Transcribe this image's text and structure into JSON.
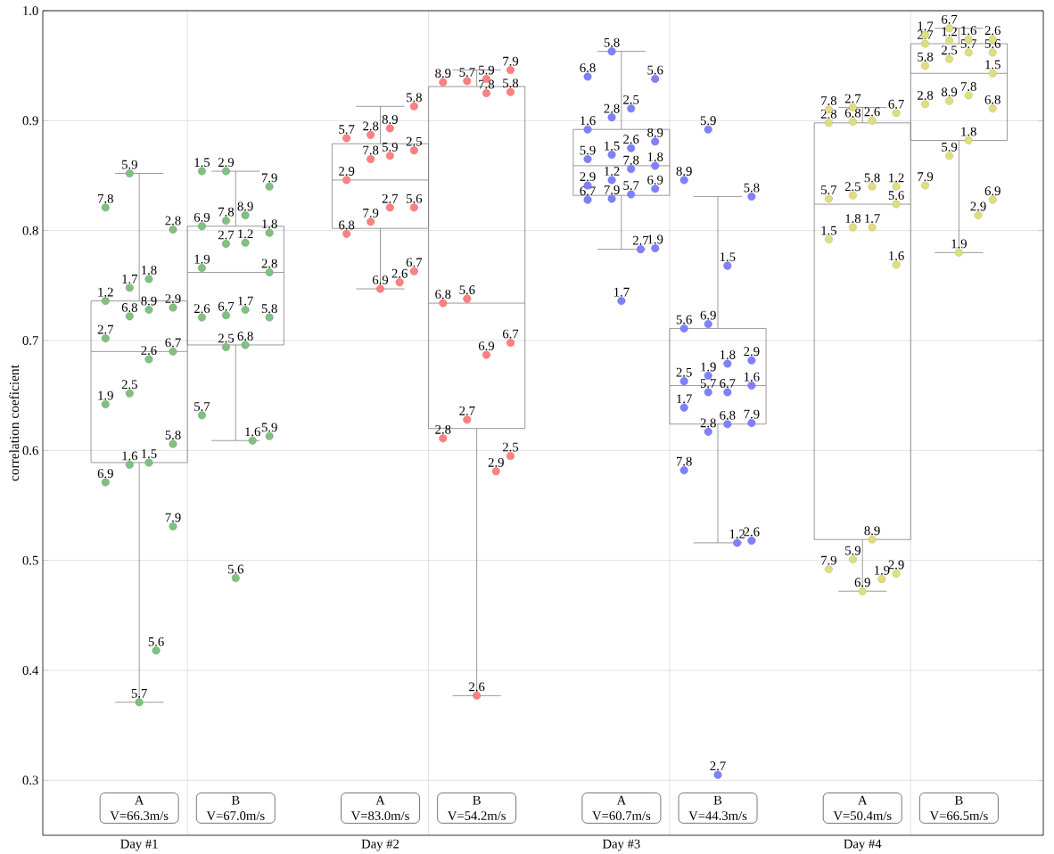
{
  "chart_data": {
    "type": "box",
    "ylabel": "correlation coeficient",
    "xlim": [
      0.6,
      4.75
    ],
    "ylim": [
      0.25,
      1.0
    ],
    "yticks": [
      0.3,
      0.4,
      0.5,
      0.6,
      0.7,
      0.8,
      0.9,
      {
        "value": 1.0,
        "label": "1.0"
      }
    ],
    "xticks": [
      {
        "value": 1,
        "label": "Day #1"
      },
      {
        "value": 1.2,
        "label": null
      },
      {
        "value": 2,
        "label": "Day #2"
      },
      {
        "value": 2.2,
        "label": null
      },
      {
        "value": 3,
        "label": "Day #3"
      },
      {
        "value": 3.2,
        "label": null
      },
      {
        "value": 4,
        "label": "Day #4"
      },
      {
        "value": 4.2,
        "label": null
      }
    ],
    "grid": true,
    "marker": "circle",
    "annotations": [
      "A",
      "V=66.3m/s",
      "B",
      "V=67.0m/s",
      "A",
      "V=83.0m/s",
      "B",
      "V=54.2m/s",
      "A",
      "V=60.7m/s",
      "B",
      "V=44.3m/s",
      "A",
      "V=50.4m/s",
      "B",
      "V=66.5m/s",
      {
        "text": "5.9",
        "x": 0.96,
        "y": 0.852
      },
      {
        "text": "7.8",
        "x": 0.86,
        "y": 0.821
      },
      {
        "text": "2.8",
        "x": 1.14,
        "y": 0.801
      },
      {
        "text": "1.7",
        "x": 0.96,
        "y": 0.748
      },
      {
        "text": "1.8",
        "x": 1.04,
        "y": 0.756
      },
      {
        "text": "1.2",
        "x": 0.86,
        "y": 0.736
      },
      {
        "text": "6.8",
        "x": 0.96,
        "y": 0.722
      },
      {
        "text": "8.9",
        "x": 1.04,
        "y": 0.728
      },
      {
        "text": "2.9",
        "x": 1.14,
        "y": 0.73
      },
      {
        "text": "2.7",
        "x": 0.86,
        "y": 0.702
      },
      {
        "text": "2.6",
        "x": 1.04,
        "y": 0.683
      },
      {
        "text": "6.7",
        "x": 1.14,
        "y": 0.69
      },
      {
        "text": "1.9",
        "x": 0.86,
        "y": 0.642
      },
      {
        "text": "2.5",
        "x": 0.96,
        "y": 0.652
      },
      {
        "text": "5.8",
        "x": 1.14,
        "y": 0.606
      },
      {
        "text": "1.6",
        "x": 0.96,
        "y": 0.587
      },
      {
        "text": "1.5",
        "x": 1.04,
        "y": 0.589
      },
      {
        "text": "6.9",
        "x": 0.86,
        "y": 0.571
      },
      {
        "text": "7.9",
        "x": 1.14,
        "y": 0.531
      },
      {
        "text": "5.6",
        "x": 1.07,
        "y": 0.418
      },
      {
        "text": "5.7",
        "x": 1.0,
        "y": 0.371
      },
      {
        "text": "1.5",
        "x": 1.26,
        "y": 0.854
      },
      {
        "text": "2.9",
        "x": 1.36,
        "y": 0.854
      },
      {
        "text": "7.9",
        "x": 1.54,
        "y": 0.84
      },
      {
        "text": "6.9",
        "x": 1.26,
        "y": 0.804
      },
      {
        "text": "7.8",
        "x": 1.36,
        "y": 0.809
      },
      {
        "text": "8.9",
        "x": 1.44,
        "y": 0.814
      },
      {
        "text": "1.8",
        "x": 1.54,
        "y": 0.798
      },
      {
        "text": "2.7",
        "x": 1.36,
        "y": 0.788
      },
      {
        "text": "1.2",
        "x": 1.44,
        "y": 0.789
      },
      {
        "text": "1.9",
        "x": 1.26,
        "y": 0.766
      },
      {
        "text": "2.8",
        "x": 1.54,
        "y": 0.762
      },
      {
        "text": "2.6",
        "x": 1.26,
        "y": 0.721
      },
      {
        "text": "6.7",
        "x": 1.36,
        "y": 0.723
      },
      {
        "text": "1.7",
        "x": 1.44,
        "y": 0.728
      },
      {
        "text": "5.8",
        "x": 1.54,
        "y": 0.721
      },
      {
        "text": "2.5",
        "x": 1.36,
        "y": 0.694
      },
      {
        "text": "6.8",
        "x": 1.44,
        "y": 0.696
      },
      {
        "text": "5.7",
        "x": 1.26,
        "y": 0.632
      },
      {
        "text": "1.6",
        "x": 1.47,
        "y": 0.609
      },
      {
        "text": "5.9",
        "x": 1.54,
        "y": 0.613
      },
      {
        "text": "5.6",
        "x": 1.4,
        "y": 0.484
      },
      {
        "text": "5.8",
        "x": 2.14,
        "y": 0.913
      },
      {
        "text": "5.7",
        "x": 1.86,
        "y": 0.884
      },
      {
        "text": "2.8",
        "x": 1.96,
        "y": 0.887
      },
      {
        "text": "8.9",
        "x": 2.04,
        "y": 0.893
      },
      {
        "text": "7.8",
        "x": 1.96,
        "y": 0.865
      },
      {
        "text": "5.9",
        "x": 2.04,
        "y": 0.868
      },
      {
        "text": "2.5",
        "x": 2.14,
        "y": 0.873
      },
      {
        "text": "2.9",
        "x": 1.86,
        "y": 0.846
      },
      {
        "text": "2.7",
        "x": 2.04,
        "y": 0.821
      },
      {
        "text": "5.6",
        "x": 2.14,
        "y": 0.821
      },
      {
        "text": "7.9",
        "x": 1.96,
        "y": 0.808
      },
      {
        "text": "6.8",
        "x": 1.86,
        "y": 0.797
      },
      {
        "text": "6.7",
        "x": 2.14,
        "y": 0.763
      },
      {
        "text": "2.6",
        "x": 2.08,
        "y": 0.753
      },
      {
        "text": "6.9",
        "x": 2.0,
        "y": 0.747
      },
      {
        "text": "8.9",
        "x": 2.26,
        "y": 0.935
      },
      {
        "text": "5.7",
        "x": 2.36,
        "y": 0.936
      },
      {
        "text": "5.9",
        "x": 2.44,
        "y": 0.938
      },
      {
        "text": "7.9",
        "x": 2.54,
        "y": 0.946
      },
      {
        "text": "7.8",
        "x": 2.44,
        "y": 0.925
      },
      {
        "text": "5.8",
        "x": 2.54,
        "y": 0.926
      },
      {
        "text": "6.8",
        "x": 2.26,
        "y": 0.734
      },
      {
        "text": "5.6",
        "x": 2.36,
        "y": 0.738
      },
      {
        "text": "6.7",
        "x": 2.54,
        "y": 0.698
      },
      {
        "text": "6.9",
        "x": 2.44,
        "y": 0.687
      },
      {
        "text": "2.7",
        "x": 2.36,
        "y": 0.628
      },
      {
        "text": "2.8",
        "x": 2.26,
        "y": 0.611
      },
      {
        "text": "2.5",
        "x": 2.54,
        "y": 0.595
      },
      {
        "text": "2.9",
        "x": 2.48,
        "y": 0.581
      },
      {
        "text": "2.6",
        "x": 2.4,
        "y": 0.377
      },
      {
        "text": "5.8",
        "x": 2.96,
        "y": 0.963
      },
      {
        "text": "6.8",
        "x": 2.86,
        "y": 0.94
      },
      {
        "text": "5.6",
        "x": 3.14,
        "y": 0.938
      },
      {
        "text": "2.8",
        "x": 2.96,
        "y": 0.903
      },
      {
        "text": "2.5",
        "x": 3.04,
        "y": 0.911
      },
      {
        "text": "1.6",
        "x": 2.86,
        "y": 0.892
      },
      {
        "text": "8.9",
        "x": 3.14,
        "y": 0.881
      },
      {
        "text": "5.9",
        "x": 2.86,
        "y": 0.865
      },
      {
        "text": "1.5",
        "x": 2.96,
        "y": 0.869
      },
      {
        "text": "2.6",
        "x": 3.04,
        "y": 0.875
      },
      {
        "text": "7.8",
        "x": 3.04,
        "y": 0.856
      },
      {
        "text": "1.8",
        "x": 3.14,
        "y": 0.859
      },
      {
        "text": "2.9",
        "x": 2.86,
        "y": 0.841
      },
      {
        "text": "1.2",
        "x": 2.96,
        "y": 0.846
      },
      {
        "text": "6.9",
        "x": 3.14,
        "y": 0.838
      },
      {
        "text": "6.7",
        "x": 2.86,
        "y": 0.828
      },
      {
        "text": "7.9",
        "x": 2.96,
        "y": 0.829
      },
      {
        "text": "5.7",
        "x": 3.04,
        "y": 0.833
      },
      {
        "text": "2.7",
        "x": 3.08,
        "y": 0.783
      },
      {
        "text": "1.9",
        "x": 3.14,
        "y": 0.784
      },
      {
        "text": "1.7",
        "x": 3.0,
        "y": 0.736
      },
      {
        "text": "5.9",
        "x": 3.36,
        "y": 0.892
      },
      {
        "text": "8.9",
        "x": 3.26,
        "y": 0.846
      },
      {
        "text": "5.8",
        "x": 3.54,
        "y": 0.831
      },
      {
        "text": "1.5",
        "x": 3.44,
        "y": 0.768
      },
      {
        "text": "5.6",
        "x": 3.26,
        "y": 0.711
      },
      {
        "text": "6.9",
        "x": 3.36,
        "y": 0.715
      },
      {
        "text": "1.8",
        "x": 3.44,
        "y": 0.679
      },
      {
        "text": "2.9",
        "x": 3.54,
        "y": 0.682
      },
      {
        "text": "2.5",
        "x": 3.26,
        "y": 0.663
      },
      {
        "text": "1.9",
        "x": 3.36,
        "y": 0.668
      },
      {
        "text": "5.7",
        "x": 3.36,
        "y": 0.653
      },
      {
        "text": "6.7",
        "x": 3.44,
        "y": 0.653
      },
      {
        "text": "1.6",
        "x": 3.54,
        "y": 0.659
      },
      {
        "text": "1.7",
        "x": 3.26,
        "y": 0.639
      },
      {
        "text": "2.8",
        "x": 3.36,
        "y": 0.617
      },
      {
        "text": "6.8",
        "x": 3.44,
        "y": 0.624
      },
      {
        "text": "7.9",
        "x": 3.54,
        "y": 0.625
      },
      {
        "text": "7.8",
        "x": 3.26,
        "y": 0.582
      },
      {
        "text": "1.2",
        "x": 3.48,
        "y": 0.516
      },
      {
        "text": "2.6",
        "x": 3.54,
        "y": 0.518
      },
      {
        "text": "2.7",
        "x": 3.4,
        "y": 0.305
      },
      {
        "text": "7.8",
        "x": 3.86,
        "y": 0.91
      },
      {
        "text": "2.7",
        "x": 3.96,
        "y": 0.912
      },
      {
        "text": "6.7",
        "x": 4.14,
        "y": 0.907
      },
      {
        "text": "2.8",
        "x": 3.86,
        "y": 0.898
      },
      {
        "text": "6.8",
        "x": 3.96,
        "y": 0.899
      },
      {
        "text": "2.6",
        "x": 4.04,
        "y": 0.9
      },
      {
        "text": "5.7",
        "x": 3.86,
        "y": 0.829
      },
      {
        "text": "2.5",
        "x": 3.96,
        "y": 0.832
      },
      {
        "text": "5.8",
        "x": 4.04,
        "y": 0.84
      },
      {
        "text": "1.2",
        "x": 4.14,
        "y": 0.84
      },
      {
        "text": "5.6",
        "x": 4.14,
        "y": 0.824
      },
      {
        "text": "1.5",
        "x": 3.86,
        "y": 0.792
      },
      {
        "text": "1.8",
        "x": 3.96,
        "y": 0.803
      },
      {
        "text": "1.7",
        "x": 4.04,
        "y": 0.803
      },
      {
        "text": "1.6",
        "x": 4.14,
        "y": 0.769
      },
      {
        "text": "8.9",
        "x": 4.04,
        "y": 0.519
      },
      {
        "text": "5.9",
        "x": 3.96,
        "y": 0.501
      },
      {
        "text": "7.9",
        "x": 3.86,
        "y": 0.492
      },
      {
        "text": "2.9",
        "x": 4.14,
        "y": 0.488
      },
      {
        "text": "1.9",
        "x": 4.08,
        "y": 0.483
      },
      {
        "text": "6.9",
        "x": 4.0,
        "y": 0.472
      },
      {
        "text": "1.7",
        "x": 4.26,
        "y": 0.978
      },
      {
        "text": "6.7",
        "x": 4.36,
        "y": 0.984
      },
      {
        "text": "1.6",
        "x": 4.44,
        "y": 0.974
      },
      {
        "text": "2.6",
        "x": 4.54,
        "y": 0.974
      },
      {
        "text": "2.7",
        "x": 4.26,
        "y": 0.97
      },
      {
        "text": "1.2",
        "x": 4.36,
        "y": 0.973
      },
      {
        "text": "5.7",
        "x": 4.44,
        "y": 0.962
      },
      {
        "text": "5.6",
        "x": 4.54,
        "y": 0.962
      },
      {
        "text": "5.8",
        "x": 4.26,
        "y": 0.95
      },
      {
        "text": "2.5",
        "x": 4.36,
        "y": 0.956
      },
      {
        "text": "1.5",
        "x": 4.54,
        "y": 0.943
      },
      {
        "text": "2.8",
        "x": 4.26,
        "y": 0.915
      },
      {
        "text": "8.9",
        "x": 4.36,
        "y": 0.918
      },
      {
        "text": "7.8",
        "x": 4.44,
        "y": 0.923
      },
      {
        "text": "6.8",
        "x": 4.54,
        "y": 0.911
      },
      {
        "text": "1.8",
        "x": 4.44,
        "y": 0.882
      },
      {
        "text": "5.9",
        "x": 4.36,
        "y": 0.868
      },
      {
        "text": "7.9",
        "x": 4.26,
        "y": 0.841
      },
      {
        "text": "6.9",
        "x": 4.54,
        "y": 0.828
      },
      {
        "text": "2.9",
        "x": 4.48,
        "y": 0.814
      },
      {
        "text": "1.9",
        "x": 4.4,
        "y": 0.78
      }
    ],
    "series": [
      {
        "color": "#808080",
        "x": [
          1,
          1.4
        ],
        "boxes": [
          {
            "low": 0.371,
            "q1": 0.589,
            "median": 0.69,
            "q3": 0.736,
            "high": 0.852
          },
          {
            "low": 0.609,
            "q1": 0.696,
            "median": 0.762,
            "q3": 0.804,
            "high": 0.854
          }
        ]
      },
      {
        "color": "#808080",
        "x": [
          2,
          2.4
        ],
        "boxes": [
          {
            "low": 0.747,
            "q1": 0.802,
            "median": 0.846,
            "q3": 0.879,
            "high": 0.913
          },
          {
            "low": 0.377,
            "q1": 0.62,
            "median": 0.734,
            "q3": 0.931,
            "high": 0.946
          }
        ]
      },
      {
        "color": "#808080",
        "x": [
          3,
          3.4
        ],
        "boxes": [
          {
            "low": 0.783,
            "q1": 0.832,
            "median": 0.859,
            "q3": 0.892,
            "high": 0.963
          },
          {
            "low": 0.516,
            "q1": 0.624,
            "median": 0.659,
            "q3": 0.711,
            "high": 0.831
          }
        ]
      },
      {
        "color": "#808080",
        "x": [
          4,
          4.4
        ],
        "boxes": [
          {
            "low": 0.472,
            "q1": 0.519,
            "median": 0.824,
            "q3": 0.898,
            "high": 0.912
          },
          {
            "low": 0.78,
            "q1": 0.882,
            "median": 0.943,
            "q3": 0.97,
            "high": 0.984
          }
        ]
      },
      {
        "type": "scatter",
        "color": "#80c080",
        "x": [
          0.96,
          0.86,
          1.14,
          0.96,
          1.04,
          0.86,
          0.96,
          1.04,
          1.14,
          0.86,
          1.04,
          1.14,
          0.86,
          0.96,
          1.14,
          0.96,
          1.04,
          0.86,
          1.14,
          1.07,
          1.0,
          1.26,
          1.36,
          1.54,
          1.26,
          1.36,
          1.44,
          1.54,
          1.36,
          1.44,
          1.26,
          1.54,
          1.26,
          1.36,
          1.44,
          1.54,
          1.36,
          1.44,
          1.26,
          1.47,
          1.54,
          1.4
        ],
        "values": [
          0.852,
          0.821,
          0.801,
          0.748,
          0.756,
          0.736,
          0.722,
          0.728,
          0.73,
          0.702,
          0.683,
          0.69,
          0.642,
          0.652,
          0.606,
          0.587,
          0.589,
          0.571,
          0.531,
          0.418,
          0.371,
          0.854,
          0.854,
          0.84,
          0.804,
          0.809,
          0.814,
          0.798,
          0.788,
          0.789,
          0.766,
          0.762,
          0.721,
          0.723,
          0.728,
          0.721,
          0.694,
          0.696,
          0.632,
          0.609,
          0.613,
          0.484
        ]
      },
      {
        "type": "scatter",
        "color": "#ff8080",
        "x": [
          2.14,
          1.86,
          1.96,
          2.04,
          1.96,
          2.04,
          2.14,
          1.86,
          2.04,
          2.14,
          1.96,
          1.86,
          2.14,
          2.08,
          2.0,
          2.26,
          2.36,
          2.44,
          2.54,
          2.44,
          2.54,
          2.26,
          2.36,
          2.54,
          2.44,
          2.36,
          2.26,
          2.54,
          2.48,
          2.4
        ],
        "values": [
          0.913,
          0.884,
          0.887,
          0.893,
          0.865,
          0.868,
          0.873,
          0.846,
          0.821,
          0.821,
          0.808,
          0.797,
          0.763,
          0.753,
          0.747,
          0.935,
          0.936,
          0.938,
          0.946,
          0.925,
          0.926,
          0.734,
          0.738,
          0.698,
          0.687,
          0.628,
          0.611,
          0.595,
          0.581,
          0.377
        ]
      },
      {
        "type": "scatter",
        "color": "#8080ff",
        "x": [
          2.96,
          2.86,
          3.14,
          2.96,
          3.04,
          2.86,
          3.14,
          2.86,
          2.96,
          3.04,
          3.04,
          3.14,
          2.86,
          2.96,
          3.14,
          2.86,
          2.96,
          3.04,
          3.08,
          3.14,
          3.0,
          3.36,
          3.26,
          3.54,
          3.44,
          3.26,
          3.36,
          3.44,
          3.54,
          3.26,
          3.36,
          3.36,
          3.44,
          3.54,
          3.26,
          3.36,
          3.44,
          3.54,
          3.26,
          3.48,
          3.54,
          3.4
        ],
        "values": [
          0.963,
          0.94,
          0.938,
          0.903,
          0.911,
          0.892,
          0.881,
          0.865,
          0.869,
          0.875,
          0.856,
          0.859,
          0.841,
          0.846,
          0.838,
          0.828,
          0.829,
          0.833,
          0.783,
          0.784,
          0.736,
          0.892,
          0.846,
          0.831,
          0.768,
          0.711,
          0.715,
          0.679,
          0.682,
          0.663,
          0.668,
          0.653,
          0.653,
          0.659,
          0.639,
          0.617,
          0.624,
          0.625,
          0.582,
          0.516,
          0.518,
          0.305
        ]
      },
      {
        "type": "scatter",
        "color": "#dede80",
        "x": [
          3.86,
          3.96,
          4.14,
          3.86,
          3.96,
          4.04,
          3.86,
          3.96,
          4.04,
          4.14,
          4.14,
          3.86,
          3.96,
          4.04,
          4.14,
          4.04,
          3.96,
          3.86,
          4.14,
          4.08,
          4.0,
          4.26,
          4.36,
          4.44,
          4.54,
          4.26,
          4.36,
          4.44,
          4.54,
          4.26,
          4.36,
          4.54,
          4.26,
          4.36,
          4.44,
          4.54,
          4.44,
          4.36,
          4.26,
          4.54,
          4.48,
          4.4
        ],
        "values": [
          0.91,
          0.912,
          0.907,
          0.898,
          0.899,
          0.9,
          0.829,
          0.832,
          0.84,
          0.84,
          0.824,
          0.792,
          0.803,
          0.803,
          0.769,
          0.519,
          0.501,
          0.492,
          0.488,
          0.483,
          0.472,
          0.978,
          0.984,
          0.974,
          0.974,
          0.97,
          0.973,
          0.962,
          0.962,
          0.95,
          0.956,
          0.943,
          0.915,
          0.918,
          0.923,
          0.911,
          0.882,
          0.868,
          0.841,
          0.828,
          0.814,
          0.78
        ]
      }
    ]
  }
}
